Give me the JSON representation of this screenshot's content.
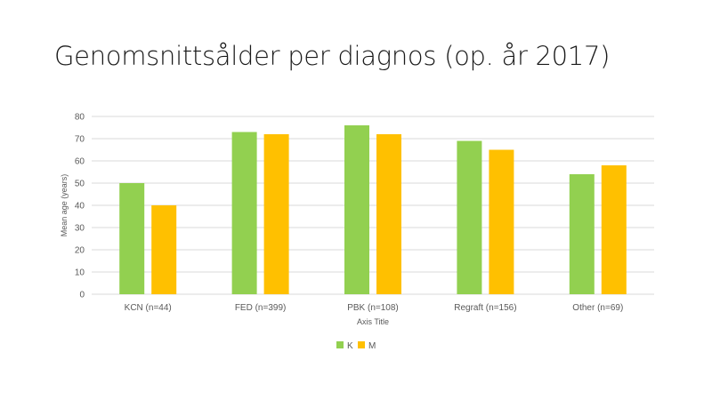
{
  "slide": {
    "title": "Genomsnittsålder per diagnos (op. år 2017)"
  },
  "colors": {
    "K": "#92d050",
    "M": "#ffc000",
    "grid": "#d9d9d9",
    "text": "#595959"
  },
  "chart_data": {
    "type": "bar",
    "title": "",
    "xlabel": "Axis Title",
    "ylabel": "Mean age (years)",
    "ylim": [
      0,
      80
    ],
    "yticks": [
      0,
      10,
      20,
      30,
      40,
      50,
      60,
      70,
      80
    ],
    "categories": [
      "KCN (n=44)",
      "FED (n=399)",
      "PBK (n=108)",
      "Regraft (n=156)",
      "Other (n=69)"
    ],
    "series": [
      {
        "name": "K",
        "values": [
          50,
          73,
          76,
          69,
          54
        ]
      },
      {
        "name": "M",
        "values": [
          40,
          72,
          72,
          65,
          58
        ]
      }
    ],
    "grid": true,
    "legend": "bottom"
  }
}
